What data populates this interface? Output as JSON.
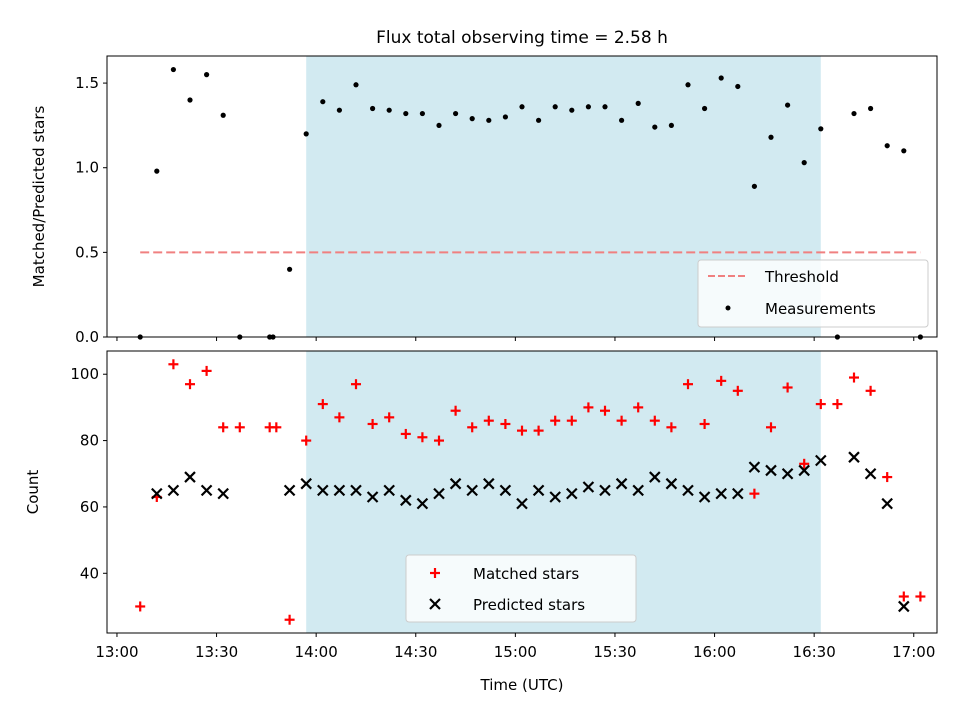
{
  "figure": {
    "title": "Flux total observing time = 2.58 h",
    "xlabel": "Time (UTC)"
  },
  "colors": {
    "shade": "#add8e6",
    "threshold": "#f08080",
    "measurements": "#000000",
    "matched": "#ff0000",
    "predicted": "#000000"
  },
  "chart_data": [
    {
      "type": "scatter",
      "ylabel": "Matched/Predicted stars",
      "xlim": [
        "12:57",
        "17:07"
      ],
      "ylim": [
        0,
        1.66
      ],
      "yticks": [
        0.0,
        0.5,
        1.0,
        1.5
      ],
      "ytick_labels": [
        "0.0",
        "0.5",
        "1.0",
        "1.5"
      ],
      "xticks": [
        "13:00",
        "13:30",
        "14:00",
        "14:30",
        "15:00",
        "15:30",
        "16:00",
        "16:30",
        "17:00"
      ],
      "shaded_span": [
        "13:57",
        "16:32"
      ],
      "grid": false,
      "legend_position": "lower right",
      "series": [
        {
          "name": "Threshold",
          "kind": "dashed-line",
          "x": [
            "13:07",
            "17:02"
          ],
          "y": [
            0.5,
            0.5
          ]
        },
        {
          "name": "Measurements",
          "kind": "dot",
          "x": [
            "13:07",
            "13:12",
            "13:17",
            "13:22",
            "13:27",
            "13:32",
            "13:37",
            "13:46",
            "13:47",
            "13:52",
            "13:57",
            "14:02",
            "14:07",
            "14:12",
            "14:17",
            "14:22",
            "14:27",
            "14:32",
            "14:37",
            "14:42",
            "14:47",
            "14:52",
            "14:57",
            "15:02",
            "15:07",
            "15:12",
            "15:17",
            "15:22",
            "15:27",
            "15:32",
            "15:37",
            "15:42",
            "15:47",
            "15:52",
            "15:57",
            "16:02",
            "16:07",
            "16:12",
            "16:17",
            "16:22",
            "16:27",
            "16:32",
            "16:37",
            "16:42",
            "16:47",
            "16:52",
            "16:57",
            "17:02"
          ],
          "y": [
            0.0,
            0.98,
            1.58,
            1.4,
            1.55,
            1.31,
            0.0,
            0.0,
            0.0,
            0.4,
            1.2,
            1.39,
            1.34,
            1.49,
            1.35,
            1.34,
            1.32,
            1.32,
            1.25,
            1.32,
            1.29,
            1.28,
            1.3,
            1.36,
            1.28,
            1.36,
            1.34,
            1.36,
            1.36,
            1.28,
            1.38,
            1.24,
            1.25,
            1.49,
            1.35,
            1.53,
            1.48,
            0.89,
            1.18,
            1.37,
            1.03,
            1.23,
            0.0,
            1.32,
            1.35,
            1.13,
            1.1,
            0.0
          ]
        }
      ]
    },
    {
      "type": "scatter",
      "ylabel": "Count",
      "xlabel": "Time (UTC)",
      "xlim": [
        "12:57",
        "17:07"
      ],
      "ylim": [
        22,
        107
      ],
      "yticks": [
        40,
        60,
        80,
        100
      ],
      "ytick_labels": [
        "40",
        "60",
        "80",
        "100"
      ],
      "xticks": [
        "13:00",
        "13:30",
        "14:00",
        "14:30",
        "15:00",
        "15:30",
        "16:00",
        "16:30",
        "17:00"
      ],
      "xtick_labels": [
        "13:00",
        "13:30",
        "14:00",
        "14:30",
        "15:00",
        "15:30",
        "16:00",
        "16:30",
        "17:00"
      ],
      "shaded_span": [
        "13:57",
        "16:32"
      ],
      "grid": false,
      "legend_position": "lower center",
      "series": [
        {
          "name": "Matched stars",
          "marker": "plus",
          "x": [
            "13:07",
            "13:12",
            "13:17",
            "13:22",
            "13:27",
            "13:32",
            "13:37",
            "13:46",
            "13:48",
            "13:52",
            "13:57",
            "14:02",
            "14:07",
            "14:12",
            "14:17",
            "14:22",
            "14:27",
            "14:32",
            "14:37",
            "14:42",
            "14:47",
            "14:52",
            "14:57",
            "15:02",
            "15:07",
            "15:12",
            "15:17",
            "15:22",
            "15:27",
            "15:32",
            "15:37",
            "15:42",
            "15:47",
            "15:52",
            "15:57",
            "16:02",
            "16:07",
            "16:12",
            "16:17",
            "16:22",
            "16:27",
            "16:32",
            "16:37",
            "16:42",
            "16:47",
            "16:52",
            "16:57",
            "17:02"
          ],
          "y": [
            30,
            63,
            103,
            97,
            101,
            84,
            84,
            84,
            84,
            26,
            80,
            91,
            87,
            97,
            85,
            87,
            82,
            81,
            80,
            89,
            84,
            86,
            85,
            83,
            83,
            86,
            86,
            90,
            89,
            86,
            90,
            86,
            84,
            97,
            85,
            98,
            95,
            64,
            84,
            96,
            73,
            91,
            91,
            99,
            95,
            69,
            33,
            33
          ]
        },
        {
          "name": "Predicted stars",
          "marker": "x",
          "x": [
            "13:12",
            "13:17",
            "13:22",
            "13:27",
            "13:32",
            "13:52",
            "13:57",
            "14:02",
            "14:07",
            "14:12",
            "14:17",
            "14:22",
            "14:27",
            "14:32",
            "14:37",
            "14:42",
            "14:47",
            "14:52",
            "14:57",
            "15:02",
            "15:07",
            "15:12",
            "15:17",
            "15:22",
            "15:27",
            "15:32",
            "15:37",
            "15:42",
            "15:47",
            "15:52",
            "15:57",
            "16:02",
            "16:07",
            "16:12",
            "16:17",
            "16:22",
            "16:27",
            "16:32",
            "16:42",
            "16:47",
            "16:52",
            "16:57"
          ],
          "y": [
            64,
            65,
            69,
            65,
            64,
            65,
            67,
            65,
            65,
            65,
            63,
            65,
            62,
            61,
            64,
            67,
            65,
            67,
            65,
            61,
            65,
            63,
            64,
            66,
            65,
            67,
            65,
            69,
            67,
            65,
            63,
            64,
            64,
            72,
            71,
            70,
            71,
            74,
            75,
            70,
            61,
            30
          ]
        }
      ]
    }
  ]
}
